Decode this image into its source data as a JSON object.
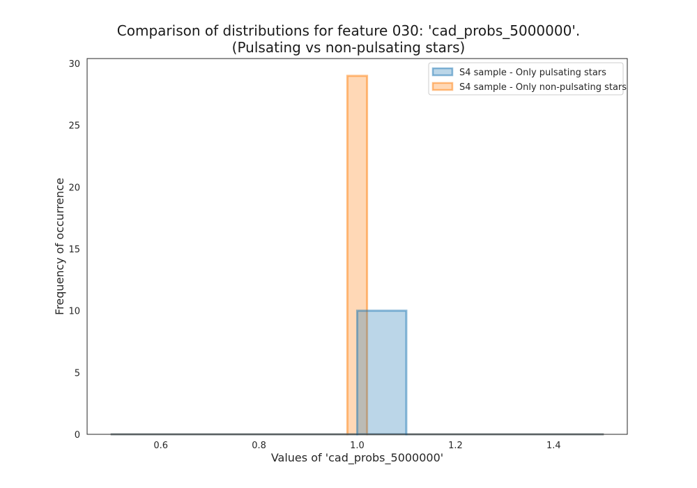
{
  "chart_data": {
    "type": "histogram",
    "title_line1": "Comparison of distributions for feature 030: 'cad_probs_5000000'.",
    "title_line2": "(Pulsating vs non-pulsating stars)",
    "xlabel": "Values of 'cad_probs_5000000'",
    "ylabel": "Frequency of occurrence",
    "xlim": [
      0.45,
      1.55
    ],
    "ylim": [
      0,
      30.4
    ],
    "xticks": [
      0.6,
      0.8,
      1.0,
      1.2,
      1.4
    ],
    "xtick_labels": [
      "0.6",
      "0.8",
      "1.0",
      "1.2",
      "1.4"
    ],
    "yticks": [
      0,
      5,
      10,
      15,
      20,
      25,
      30
    ],
    "ytick_labels": [
      "0",
      "5",
      "10",
      "15",
      "20",
      "25",
      "30"
    ],
    "grid": false,
    "legend_position": "top-right",
    "series": [
      {
        "name": "S4 sample - Only pulsating stars",
        "color": "#1f77b4",
        "bins": [
          {
            "x0": 0.5,
            "x1": 1.0,
            "count": 0
          },
          {
            "x0": 1.0,
            "x1": 1.1,
            "count": 10
          },
          {
            "x0": 1.1,
            "x1": 1.5,
            "count": 0
          }
        ]
      },
      {
        "name": "S4 sample - Only non-pulsating stars",
        "color": "#ff7f0e",
        "bins": [
          {
            "x0": 0.5,
            "x1": 0.98,
            "count": 0
          },
          {
            "x0": 0.98,
            "x1": 1.02,
            "count": 29
          },
          {
            "x0": 1.02,
            "x1": 1.5,
            "count": 0
          }
        ]
      }
    ]
  }
}
